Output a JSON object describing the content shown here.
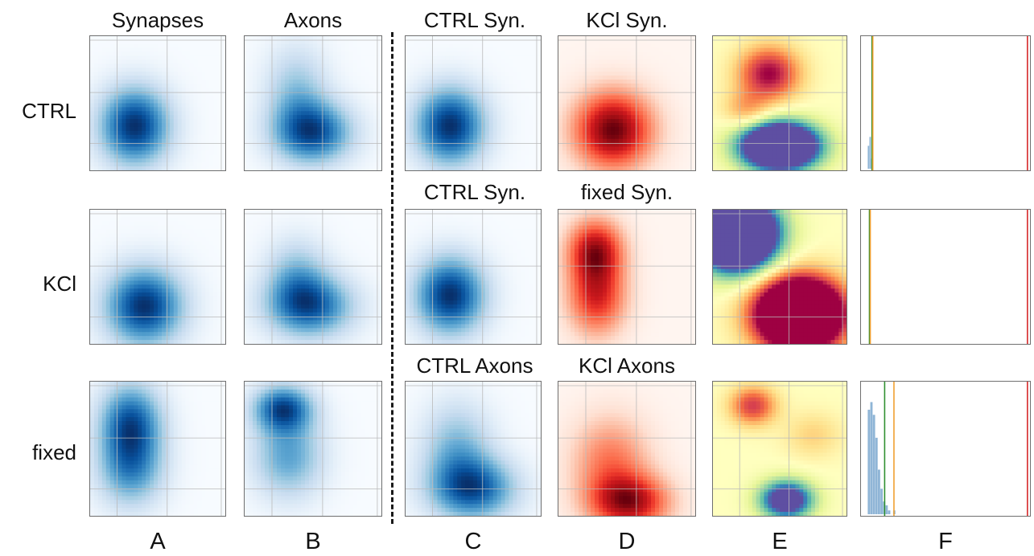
{
  "figure": {
    "column_titles": {
      "a_top": "Synapses",
      "b_top": "Axons",
      "c_row1": "CTRL Syn.",
      "d_row1": "KCl Syn.",
      "c_row2": "CTRL Syn.",
      "d_row2": "fixed Syn.",
      "c_row3": "CTRL Axons",
      "d_row3": "KCl Axons"
    },
    "row_labels": [
      "CTRL",
      "KCl",
      "fixed"
    ],
    "column_labels": [
      "A",
      "B",
      "C",
      "D",
      "E",
      "F"
    ]
  },
  "chart_data": [
    {
      "type": "heatmap",
      "description_kind": "kernel density estimate",
      "colormap": "Blues",
      "grid": true,
      "panels": [
        {
          "column": "A",
          "row": "CTRL",
          "title": "Synapses",
          "peaks": [
            {
              "x": 0.33,
              "y": 0.33,
              "sx": 0.18,
              "sy": 0.2,
              "w": 1.0
            }
          ]
        },
        {
          "column": "A",
          "row": "KCl",
          "peaks": [
            {
              "x": 0.4,
              "y": 0.28,
              "sx": 0.2,
              "sy": 0.2,
              "w": 1.0
            }
          ]
        },
        {
          "column": "A",
          "row": "fixed",
          "peaks": [
            {
              "x": 0.3,
              "y": 0.7,
              "sx": 0.16,
              "sy": 0.2,
              "w": 1.0
            },
            {
              "x": 0.3,
              "y": 0.35,
              "sx": 0.17,
              "sy": 0.2,
              "w": 0.75
            }
          ]
        },
        {
          "column": "B",
          "row": "CTRL",
          "title": "Axons",
          "peaks": [
            {
              "x": 0.5,
              "y": 0.28,
              "sx": 0.2,
              "sy": 0.16,
              "w": 1.0
            },
            {
              "x": 0.38,
              "y": 0.58,
              "sx": 0.16,
              "sy": 0.24,
              "w": 0.45
            }
          ]
        },
        {
          "column": "B",
          "row": "KCl",
          "peaks": [
            {
              "x": 0.48,
              "y": 0.28,
              "sx": 0.22,
              "sy": 0.16,
              "w": 1.0
            },
            {
              "x": 0.38,
              "y": 0.5,
              "sx": 0.16,
              "sy": 0.2,
              "w": 0.5
            }
          ]
        },
        {
          "column": "B",
          "row": "fixed",
          "peaks": [
            {
              "x": 0.28,
              "y": 0.8,
              "sx": 0.15,
              "sy": 0.12,
              "w": 1.0
            },
            {
              "x": 0.32,
              "y": 0.45,
              "sx": 0.18,
              "sy": 0.22,
              "w": 0.65
            }
          ]
        },
        {
          "column": "C",
          "row": "CTRL",
          "title": "CTRL Syn.",
          "peaks": [
            {
              "x": 0.33,
              "y": 0.33,
              "sx": 0.18,
              "sy": 0.2,
              "w": 1.0
            }
          ]
        },
        {
          "column": "C",
          "row": "KCl",
          "title": "CTRL Syn.",
          "peaks": [
            {
              "x": 0.33,
              "y": 0.36,
              "sx": 0.18,
              "sy": 0.2,
              "w": 1.0
            }
          ]
        },
        {
          "column": "C",
          "row": "fixed",
          "title": "CTRL Axons",
          "peaks": [
            {
              "x": 0.5,
              "y": 0.2,
              "sx": 0.22,
              "sy": 0.16,
              "w": 1.0
            },
            {
              "x": 0.38,
              "y": 0.5,
              "sx": 0.18,
              "sy": 0.24,
              "w": 0.55
            }
          ]
        }
      ]
    },
    {
      "type": "heatmap",
      "description_kind": "kernel density estimate",
      "colormap": "Reds",
      "grid": true,
      "panels": [
        {
          "column": "D",
          "row": "CTRL",
          "title": "KCl Syn.",
          "peaks": [
            {
              "x": 0.4,
              "y": 0.3,
              "sx": 0.2,
              "sy": 0.2,
              "w": 1.0
            }
          ]
        },
        {
          "column": "D",
          "row": "KCl",
          "title": "fixed Syn.",
          "peaks": [
            {
              "x": 0.27,
              "y": 0.7,
              "sx": 0.14,
              "sy": 0.16,
              "w": 1.0
            },
            {
              "x": 0.28,
              "y": 0.35,
              "sx": 0.15,
              "sy": 0.2,
              "w": 0.85
            }
          ]
        },
        {
          "column": "D",
          "row": "fixed",
          "title": "KCl Axons",
          "peaks": [
            {
              "x": 0.52,
              "y": 0.1,
              "sx": 0.2,
              "sy": 0.14,
              "w": 1.0
            },
            {
              "x": 0.38,
              "y": 0.4,
              "sx": 0.2,
              "sy": 0.24,
              "w": 0.55
            }
          ]
        }
      ]
    },
    {
      "type": "heatmap",
      "description_kind": "density difference",
      "colormap": "Spectral",
      "grid": true,
      "panels": [
        {
          "column": "E",
          "row": "CTRL",
          "lobes": [
            {
              "x": 0.5,
              "y": 0.18,
              "sx": 0.2,
              "sy": 0.12,
              "w": 2.5
            },
            {
              "x": 0.42,
              "y": 0.72,
              "sx": 0.16,
              "sy": 0.14,
              "w": -1.0
            },
            {
              "x": 0.25,
              "y": 0.45,
              "sx": 0.12,
              "sy": 0.1,
              "w": -0.4
            }
          ]
        },
        {
          "column": "E",
          "row": "KCl",
          "lobes": [
            {
              "x": 0.18,
              "y": 0.82,
              "sx": 0.2,
              "sy": 0.18,
              "w": 3.0
            },
            {
              "x": 0.65,
              "y": 0.22,
              "sx": 0.22,
              "sy": 0.18,
              "w": -3.0
            }
          ]
        },
        {
          "column": "E",
          "row": "fixed",
          "lobes": [
            {
              "x": 0.55,
              "y": 0.12,
              "sx": 0.14,
              "sy": 0.1,
              "w": 1.4
            },
            {
              "x": 0.3,
              "y": 0.82,
              "sx": 0.12,
              "sy": 0.1,
              "w": -0.8
            },
            {
              "x": 0.75,
              "y": 0.6,
              "sx": 0.15,
              "sy": 0.12,
              "w": -0.25
            }
          ]
        }
      ]
    },
    {
      "type": "bar",
      "description_kind": "histogram with reference lines",
      "colors": {
        "bars": "#8fb5d6",
        "green": "#2f8f2f",
        "orange": "#f0a030",
        "red": "#d62728"
      },
      "panels": [
        {
          "column": "F",
          "row": "CTRL",
          "xlim": [
            0,
            1
          ],
          "ylim": [
            0,
            1
          ],
          "bins": [
            0.04,
            0.05,
            0.06
          ],
          "counts": [
            0.18,
            0.25,
            0.08
          ],
          "vlines": {
            "green": 0.065,
            "orange": 0.07,
            "red": 0.985
          }
        },
        {
          "column": "F",
          "row": "KCl",
          "xlim": [
            0,
            1
          ],
          "ylim": [
            0,
            1
          ],
          "bins": [],
          "counts": [],
          "vlines": {
            "green": 0.05,
            "orange": 0.055,
            "red": 0.985
          }
        },
        {
          "column": "F",
          "row": "fixed",
          "xlim": [
            0,
            1
          ],
          "ylim": [
            0,
            1
          ],
          "bins": [
            0.04,
            0.055,
            0.07,
            0.085,
            0.1,
            0.115,
            0.13,
            0.145,
            0.16,
            0.175,
            0.19
          ],
          "counts": [
            0.82,
            0.88,
            0.78,
            0.6,
            0.35,
            0.2,
            0.1,
            0.07,
            0.03,
            0.0,
            0.03
          ],
          "vlines": {
            "green": 0.14,
            "orange": 0.195,
            "red": 0.985
          }
        }
      ]
    }
  ]
}
